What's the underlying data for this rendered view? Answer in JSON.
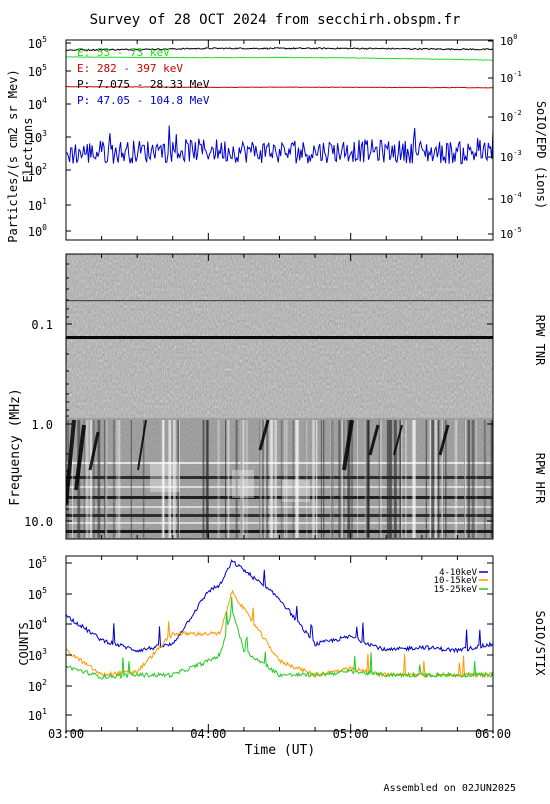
{
  "title": "Survey of 28 OCT 2024 from secchirh.obspm.fr",
  "footer": "Assembled on 02JUN2025",
  "panels": {
    "epd": {
      "ylabel_left_1": "Particles/(s cm2 sr Mev)",
      "ylabel_left_2": "Electrons",
      "ylabel_right": "SoIO/EPD (ions)",
      "left_ticks": [
        {
          "base": "10",
          "exp": "0"
        },
        {
          "base": "10",
          "exp": "1"
        },
        {
          "base": "10",
          "exp": "2"
        },
        {
          "base": "10",
          "exp": "3"
        },
        {
          "base": "10",
          "exp": "4"
        },
        {
          "base": "10",
          "exp": "5"
        },
        {
          "base": "10",
          "exp": "5"
        }
      ],
      "right_ticks": [
        {
          "base": "10",
          "exp": "-5"
        },
        {
          "base": "10",
          "exp": "-4"
        },
        {
          "base": "10",
          "exp": "-3"
        },
        {
          "base": "10",
          "exp": "-2"
        },
        {
          "base": "10",
          "exp": "-1"
        },
        {
          "base": "10",
          "exp": "0"
        }
      ],
      "legend": [
        {
          "label": "E: 53 - 73 keV",
          "color": "#22dd22"
        },
        {
          "label": "E: 282 - 397 keV",
          "color": "#cc0000"
        },
        {
          "label": "P: 7.075 - 28.33 MeV",
          "color": "#000000"
        },
        {
          "label": "P: 47.05 - 104.8 MeV",
          "color": "#0000cc"
        }
      ]
    },
    "rpw": {
      "ylabel": "Frequency (MHz)",
      "right_top": "RPW TNR",
      "right_bottom": "RPW HFR",
      "ticks": [
        "0.1",
        "1.0",
        "10.0"
      ]
    },
    "stix": {
      "ylabel_left": "COUNTS",
      "ylabel_right": "SoIO/STIX",
      "xlabel": "Time (UT)",
      "ticks": [
        {
          "base": "10",
          "exp": "1"
        },
        {
          "base": "10",
          "exp": "2"
        },
        {
          "base": "10",
          "exp": "3"
        },
        {
          "base": "10",
          "exp": "4"
        },
        {
          "base": "10",
          "exp": "5"
        },
        {
          "base": "10",
          "exp": "5"
        }
      ],
      "x_ticks": [
        "03:00",
        "04:00",
        "05:00",
        "06:00"
      ],
      "legend": [
        {
          "label": "4-10keV",
          "color": "#0000cc"
        },
        {
          "label": "10-15keV",
          "color": "#ff9900"
        },
        {
          "label": "15-25keV",
          "color": "#22cc22"
        }
      ]
    }
  },
  "chart_data": [
    {
      "type": "line",
      "panel": "SoIO/EPD",
      "x_unit": "UT",
      "x": [
        "03:00",
        "03:30",
        "04:00",
        "04:30",
        "05:00",
        "05:30",
        "06:00"
      ],
      "yscale": "log",
      "ylim": [
        1,
        1000000
      ],
      "series": [
        {
          "name": "E: 53 - 73 keV",
          "color": "#22dd22",
          "values": [
            310000,
            300000,
            295000,
            300000,
            290000,
            270000,
            250000
          ]
        },
        {
          "name": "E: 282 - 397 keV",
          "color": "#cc0000",
          "values": [
            40000,
            39000,
            38000,
            38500,
            38000,
            37500,
            37000
          ]
        },
        {
          "name": "P: 7.075 - 28.33 MeV",
          "color": "#000000",
          "values": [
            500000,
            520000,
            560000,
            560000,
            560000,
            540000,
            520000
          ]
        },
        {
          "name": "P: 47.05 - 104.8 MeV",
          "color": "#0000cc",
          "values": [
            400,
            450,
            500,
            420,
            480,
            440,
            400
          ]
        }
      ]
    },
    {
      "type": "heatmap",
      "panel": "RPW TNR / RPW HFR",
      "yscale": "log",
      "ylim": [
        0.02,
        15
      ],
      "x_range": [
        "03:00",
        "06:00"
      ]
    },
    {
      "type": "line",
      "panel": "SoIO/STIX",
      "yscale": "log",
      "ylim": [
        10,
        1000000
      ],
      "x": [
        "03:00",
        "03:15",
        "03:30",
        "03:45",
        "04:00",
        "04:05",
        "04:10",
        "04:15",
        "04:30",
        "04:45",
        "05:00",
        "05:15",
        "05:30",
        "05:45",
        "06:00"
      ],
      "series": [
        {
          "name": "4-10keV",
          "color": "#0000cc",
          "values": [
            20000,
            4000,
            2000,
            3000,
            100000,
            150000,
            700000,
            400000,
            60000,
            3000,
            5000,
            2000,
            2500,
            2000,
            3000
          ]
        },
        {
          "name": "10-15keV",
          "color": "#ff9900",
          "values": [
            2000,
            400,
            500,
            6000,
            6000,
            6000,
            100000,
            30000,
            1000,
            400,
            600,
            400,
            400,
            400,
            400
          ]
        },
        {
          "name": "15-25keV",
          "color": "#22cc22",
          "values": [
            700,
            350,
            400,
            400,
            1000,
            1500,
            30000,
            2000,
            400,
            400,
            500,
            400,
            400,
            400,
            400
          ]
        }
      ]
    }
  ]
}
